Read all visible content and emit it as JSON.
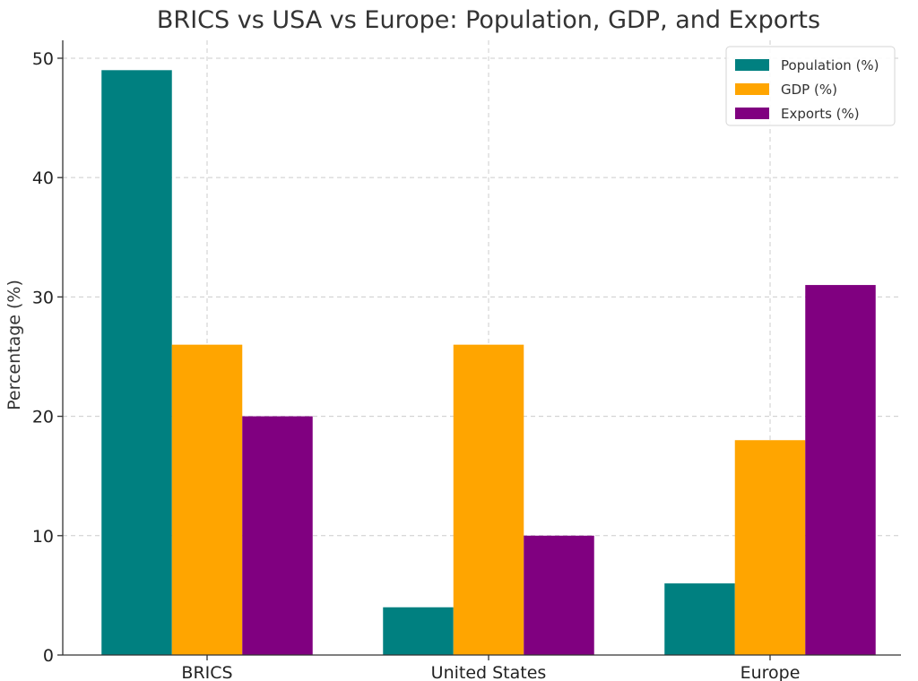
{
  "chart_data": {
    "type": "bar",
    "title": "BRICS vs USA vs Europe: Population, GDP, and Exports",
    "xlabel": "",
    "ylabel": "Percentage (%)",
    "categories": [
      "BRICS",
      "United States",
      "Europe"
    ],
    "series": [
      {
        "name": "Population (%)",
        "values": [
          49,
          4,
          6
        ],
        "color": "#008080"
      },
      {
        "name": "GDP (%)",
        "values": [
          26,
          26,
          18
        ],
        "color": "#FFA500"
      },
      {
        "name": "Exports (%)",
        "values": [
          20,
          10,
          31
        ],
        "color": "#800080"
      }
    ],
    "ylim": [
      0,
      51.5
    ],
    "yticks": [
      0,
      10,
      20,
      30,
      40,
      50
    ],
    "grid": true,
    "legend_position": "top-right"
  }
}
